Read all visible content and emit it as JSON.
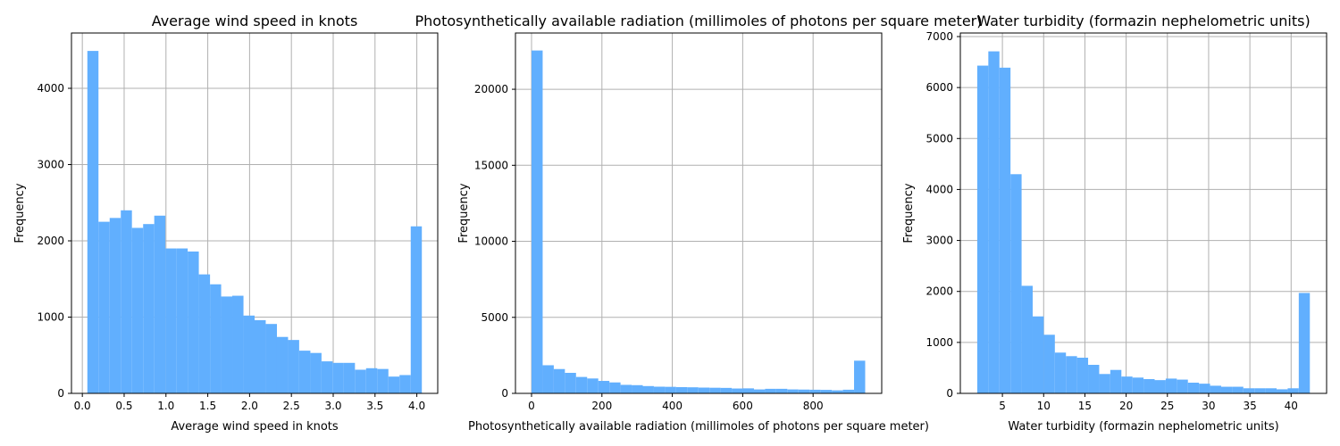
{
  "chart_data": [
    {
      "type": "histogram",
      "title": "Average wind speed in knots",
      "xlabel": "Average wind speed in knots",
      "ylabel": "Frequency",
      "color": "#61affe",
      "grid": true,
      "bins": [
        0.06,
        0.193,
        0.327,
        0.46,
        0.593,
        0.727,
        0.86,
        0.993,
        1.127,
        1.26,
        1.393,
        1.527,
        1.66,
        1.793,
        1.927,
        2.06,
        2.193,
        2.327,
        2.46,
        2.593,
        2.727,
        2.86,
        2.993,
        3.127,
        3.26,
        3.393,
        3.527,
        3.66,
        3.793,
        3.927,
        4.06
      ],
      "values": [
        4490,
        2250,
        2300,
        2400,
        2170,
        2220,
        2330,
        1900,
        1900,
        1860,
        1560,
        1430,
        1270,
        1280,
        1020,
        960,
        910,
        740,
        700,
        560,
        530,
        420,
        400,
        400,
        310,
        330,
        320,
        220,
        240,
        2190
      ],
      "xlim": [
        -0.13,
        4.25
      ],
      "ylim": [
        0,
        4725
      ],
      "xticks": [
        {
          "value": 0,
          "label": "0.0"
        },
        0.5,
        {
          "value": 1,
          "label": "1.0"
        },
        1.5,
        {
          "value": 2,
          "label": "2.0"
        },
        2.5,
        {
          "value": 3,
          "label": "3.0"
        },
        3.5,
        {
          "value": 4,
          "label": "4.0"
        }
      ],
      "yticks": [
        0,
        1000,
        2000,
        3000,
        4000
      ]
    },
    {
      "type": "histogram",
      "title": "Photosynthetically available radiation (millimoles of photons per square meter)",
      "xlabel": "Photosynthetically available radiation (millimoles of photons per square meter)",
      "ylabel": "Frequency",
      "color": "#61affe",
      "grid": true,
      "bins": [
        0,
        31.6,
        63.2,
        94.8,
        126.4,
        158,
        189.6,
        221.2,
        252.8,
        284.4,
        316,
        347.6,
        379.2,
        410.8,
        442.4,
        474,
        505.6,
        537.2,
        568.8,
        600.4,
        632,
        663.6,
        695.2,
        726.8,
        758.4,
        790,
        821.6,
        853.2,
        884.8,
        916.4,
        948
      ],
      "values": [
        22550,
        1850,
        1600,
        1350,
        1080,
        980,
        820,
        720,
        560,
        540,
        480,
        440,
        430,
        410,
        400,
        380,
        370,
        360,
        320,
        330,
        260,
        300,
        300,
        260,
        250,
        240,
        230,
        200,
        240,
        2150
      ],
      "xlim": [
        -45.7,
        995
      ],
      "ylim": [
        0,
        23700
      ],
      "xticks": [
        0,
        200,
        400,
        600,
        800
      ],
      "yticks": [
        0,
        5000,
        10000,
        15000,
        20000
      ]
    },
    {
      "type": "histogram",
      "title": "Water turbidity (formazin nephelometric units)",
      "xlabel": "Water turbidity (formazin nephelometric units)",
      "ylabel": "Frequency",
      "color": "#61affe",
      "grid": true,
      "bins": [
        1.95,
        3.294,
        4.638,
        5.982,
        7.326,
        8.67,
        10.014,
        11.358,
        12.702,
        14.046,
        15.39,
        16.734,
        18.078,
        19.422,
        20.766,
        22.11,
        23.454,
        24.798,
        26.142,
        27.486,
        28.83,
        30.174,
        31.518,
        32.862,
        34.206,
        35.55,
        36.894,
        38.238,
        39.582,
        40.926,
        42.27
      ],
      "values": [
        6430,
        6710,
        6390,
        4300,
        2110,
        1510,
        1150,
        800,
        730,
        700,
        560,
        380,
        460,
        330,
        310,
        280,
        260,
        290,
        270,
        210,
        190,
        150,
        130,
        130,
        100,
        100,
        100,
        80,
        100,
        1970
      ],
      "xlim": [
        -0.1,
        44.3
      ],
      "ylim": [
        0,
        7070
      ],
      "xticks": [
        5,
        10,
        15,
        20,
        25,
        30,
        35,
        40
      ],
      "yticks": [
        0,
        1000,
        2000,
        3000,
        4000,
        5000,
        6000,
        7000
      ]
    }
  ]
}
